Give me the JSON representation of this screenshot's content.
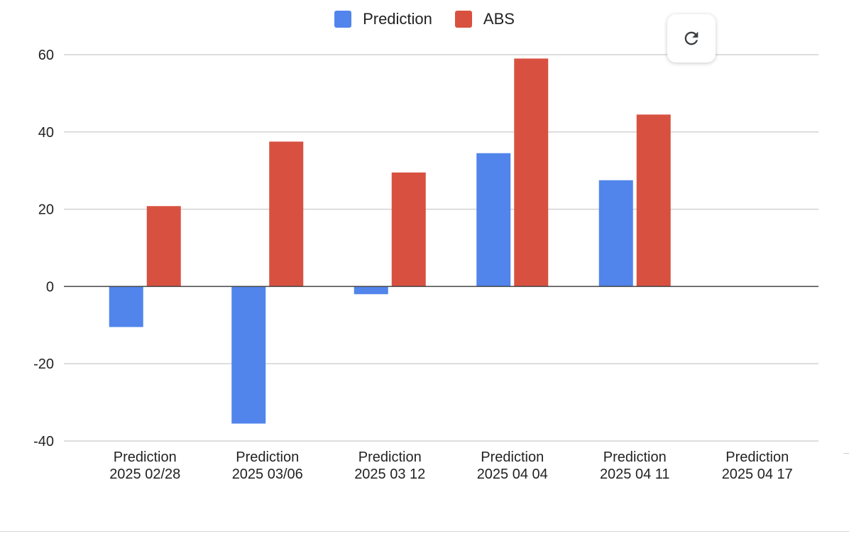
{
  "chart_data": {
    "type": "bar",
    "categories": [
      "Prediction 2025 02/28",
      "Prediction 2025 03/06",
      "Prediction 2025 03 12",
      "Prediction 2025 04 04",
      "Prediction 2025 04 11",
      "Prediction 2025 04 17"
    ],
    "category_lines": [
      [
        "Prediction",
        "2025 02/28"
      ],
      [
        "Prediction",
        "2025 03/06"
      ],
      [
        "Prediction",
        "2025 03 12"
      ],
      [
        "Prediction",
        "2025 04 04"
      ],
      [
        "Prediction",
        "2025 04 11"
      ],
      [
        "Prediction",
        "2025 04 17"
      ]
    ],
    "series": [
      {
        "name": "Prediction",
        "color": "#5185EC",
        "values": [
          -10.5,
          -35.5,
          -2,
          34.5,
          27.5,
          null
        ]
      },
      {
        "name": "ABS",
        "color": "#D85140",
        "values": [
          20.8,
          37.5,
          29.5,
          59,
          44.5,
          null
        ]
      }
    ],
    "ylim": [
      -40,
      60
    ],
    "yticks": [
      60,
      40,
      20,
      0,
      -20,
      -40
    ],
    "grid": true,
    "legend_position": "top",
    "title": "",
    "xlabel": "",
    "ylabel": ""
  },
  "legend": {
    "items": [
      {
        "label": "Prediction",
        "color": "#5185EC"
      },
      {
        "label": "ABS",
        "color": "#D85140"
      }
    ]
  },
  "refresh_button": {
    "icon": "refresh-icon"
  }
}
